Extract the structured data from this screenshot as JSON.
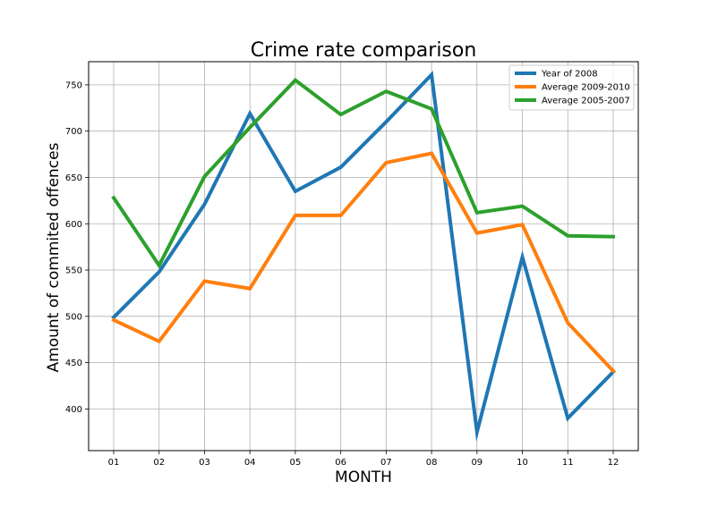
{
  "chart_data": {
    "type": "line",
    "title": "Crime rate comparison",
    "xlabel": "MONTH",
    "ylabel": "Amount of commited offences",
    "categories": [
      "01",
      "02",
      "03",
      "04",
      "05",
      "06",
      "07",
      "08",
      "09",
      "10",
      "11",
      "12"
    ],
    "ylim": [
      355,
      775
    ],
    "yticks": [
      400,
      450,
      500,
      550,
      600,
      650,
      700,
      750
    ],
    "grid": true,
    "legend_position": "top-right",
    "series": [
      {
        "name": "Year of 2008",
        "color": "#1f77b4",
        "values": [
          499,
          548,
          621,
          719,
          635,
          661,
          710,
          761,
          375,
          564,
          390,
          440
        ]
      },
      {
        "name": "Average 2009-2010",
        "color": "#ff7f0e",
        "values": [
          496,
          473,
          538,
          530,
          609,
          609,
          666,
          676,
          590,
          599,
          493,
          441
        ]
      },
      {
        "name": "Average 2005-2007",
        "color": "#2ca02c",
        "values": [
          628,
          555,
          651,
          704,
          755,
          718,
          743,
          724,
          612,
          619,
          587,
          586
        ]
      }
    ]
  }
}
